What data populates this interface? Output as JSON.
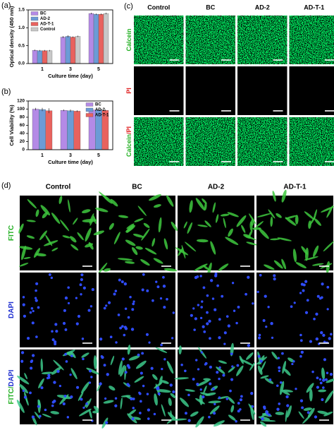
{
  "chart_data": [
    {
      "type": "bar",
      "label": "(a)",
      "y_label": "Optical density (450 nm)",
      "x_label": "Culture time (day)",
      "categories": [
        "1",
        "3",
        "5"
      ],
      "series": [
        {
          "name": "BC",
          "color": "#b48ae6",
          "values": [
            0.37,
            0.74,
            1.4
          ],
          "errors": [
            0.02,
            0.03,
            0.02
          ]
        },
        {
          "name": "AD-2",
          "color": "#6c9bd6",
          "values": [
            0.36,
            0.76,
            1.38
          ],
          "errors": [
            0.02,
            0.03,
            0.02
          ]
        },
        {
          "name": "AD-T-1",
          "color": "#e8625e",
          "values": [
            0.36,
            0.74,
            1.38
          ],
          "errors": [
            0.02,
            0.02,
            0.02
          ]
        },
        {
          "name": "Control",
          "color": "#c8c8c8",
          "values": [
            0.36,
            0.76,
            1.4
          ],
          "errors": [
            0.02,
            0.02,
            0.02
          ]
        }
      ],
      "ylim": [
        0,
        1.5
      ],
      "yticks": [
        {
          "value": 0,
          "label": "0.0"
        },
        0.5,
        {
          "value": 1,
          "label": "1.0"
        },
        1.5
      ],
      "legend": "upper left"
    },
    {
      "type": "bar",
      "label": "(b)",
      "y_label": "Cell Viability (%)",
      "x_label": "Culture time (day)",
      "categories": [
        "1",
        "3",
        "5"
      ],
      "series": [
        {
          "name": "BC",
          "color": "#b48ae6",
          "values": [
            100,
            97,
            98
          ],
          "errors": [
            3,
            2,
            2
          ]
        },
        {
          "name": "AD-2",
          "color": "#6c9bd6",
          "values": [
            99,
            96,
            98
          ],
          "errors": [
            4,
            3,
            2
          ]
        },
        {
          "name": "AD-T-1",
          "color": "#e8625e",
          "values": [
            96,
            95,
            97
          ],
          "errors": [
            6,
            2,
            2
          ]
        }
      ],
      "ylim": [
        0,
        120
      ],
      "yticks": [
        0,
        20,
        40,
        60,
        80,
        100,
        120
      ],
      "legend": "upper right"
    }
  ],
  "panel_c": {
    "label": "(c)",
    "columns": [
      "Control",
      "BC",
      "AD-2",
      "AD-T-1"
    ],
    "rows": [
      {
        "kind": "calcein",
        "label": [
          {
            "text": "Calcein",
            "color": "#22b022"
          }
        ]
      },
      {
        "kind": "dark",
        "label": [
          {
            "text": "PI",
            "color": "#e02020"
          }
        ]
      },
      {
        "kind": "calcein",
        "label": [
          {
            "text": "Calcein",
            "color": "#22b022"
          },
          {
            "text": "/PI",
            "color": "#e02020"
          }
        ]
      }
    ]
  },
  "panel_d": {
    "label": "(d)",
    "columns": [
      "Control",
      "BC",
      "AD-2",
      "AD-T-1"
    ],
    "rows": [
      {
        "kind": "fitc",
        "label": [
          {
            "text": "FITC",
            "color": "#22b022"
          }
        ]
      },
      {
        "kind": "dapi",
        "label": [
          {
            "text": "DAPI",
            "color": "#2030d0"
          }
        ]
      },
      {
        "kind": "merge",
        "label": [
          {
            "text": "FITC/",
            "color": "#22b022"
          },
          {
            "text": "DAPI",
            "color": "#2030d0"
          }
        ]
      }
    ]
  }
}
